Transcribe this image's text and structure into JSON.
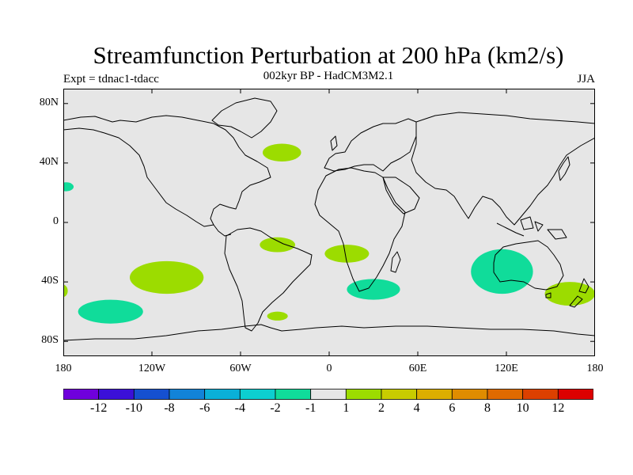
{
  "title": "Streamfunction Perturbation at 200 hPa (km2/s)",
  "subtitle": "002kyr BP - HadCM3M2.1",
  "expt_label": "Expt = tdnac1-tdacc",
  "season": "JJA",
  "lat_ticks": [
    {
      "label": "80N",
      "value": 80
    },
    {
      "label": "40N",
      "value": 40
    },
    {
      "label": "0",
      "value": 0
    },
    {
      "label": "40S",
      "value": -40
    },
    {
      "label": "80S",
      "value": -80
    }
  ],
  "lon_ticks": [
    {
      "label": "180",
      "value": -180
    },
    {
      "label": "120W",
      "value": -120
    },
    {
      "label": "60W",
      "value": -60
    },
    {
      "label": "0",
      "value": 0
    },
    {
      "label": "60E",
      "value": 60
    },
    {
      "label": "120E",
      "value": 120
    },
    {
      "label": "180",
      "value": 180
    }
  ],
  "colorbar": {
    "colors": [
      "#6f00dc",
      "#3b10d8",
      "#1550d0",
      "#1283d8",
      "#0ab0d8",
      "#0dcfd0",
      "#10dc9a",
      "#e6e6e6",
      "#9cdc00",
      "#c8cc00",
      "#dcae00",
      "#e08c00",
      "#e06a00",
      "#dc4000",
      "#dc0000"
    ],
    "labels": [
      "-12",
      "-10",
      "-8",
      "-6",
      "-4",
      "-2",
      "-1",
      "1",
      "2",
      "4",
      "6",
      "8",
      "10",
      "12"
    ]
  },
  "features": [
    {
      "name": "north-atlantic-positive",
      "color": "#9cdc00",
      "lon": -32,
      "lat": 47,
      "rlon": 13,
      "rlat": 6
    },
    {
      "name": "subtropical-pacific-negative",
      "color": "#10dc9a",
      "lon": -178,
      "lat": 24,
      "rlon": 5,
      "rlat": 3
    },
    {
      "name": "south-america-positive",
      "color": "#9cdc00",
      "lon": -35,
      "lat": -15,
      "rlon": 12,
      "rlat": 5
    },
    {
      "name": "southeast-pacific-positive",
      "color": "#9cdc00",
      "lon": -110,
      "lat": -37,
      "rlon": 25,
      "rlat": 11
    },
    {
      "name": "south-pacific-negative",
      "color": "#10dc9a",
      "lon": -148,
      "lat": -60,
      "rlon": 22,
      "rlat": 8
    },
    {
      "name": "drake-passage-positive",
      "color": "#9cdc00",
      "lon": -35,
      "lat": -63,
      "rlon": 7,
      "rlat": 3
    },
    {
      "name": "south-atlantic-positive",
      "color": "#9cdc00",
      "lon": 12,
      "lat": -21,
      "rlon": 15,
      "rlat": 6
    },
    {
      "name": "southern-ocean-negative",
      "color": "#10dc9a",
      "lon": 30,
      "lat": -45,
      "rlon": 18,
      "rlat": 7
    },
    {
      "name": "australia-negative",
      "color": "#10dc9a",
      "lon": 117,
      "lat": -33,
      "rlon": 21,
      "rlat": 15
    },
    {
      "name": "new-zealand-positive",
      "color": "#9cdc00",
      "lon": 163,
      "lat": -48,
      "rlon": 17,
      "rlat": 8
    },
    {
      "name": "dateline-edge-positive",
      "color": "#9cdc00",
      "lon": -180,
      "lat": -46,
      "rlon": 3,
      "rlat": 4
    }
  ]
}
